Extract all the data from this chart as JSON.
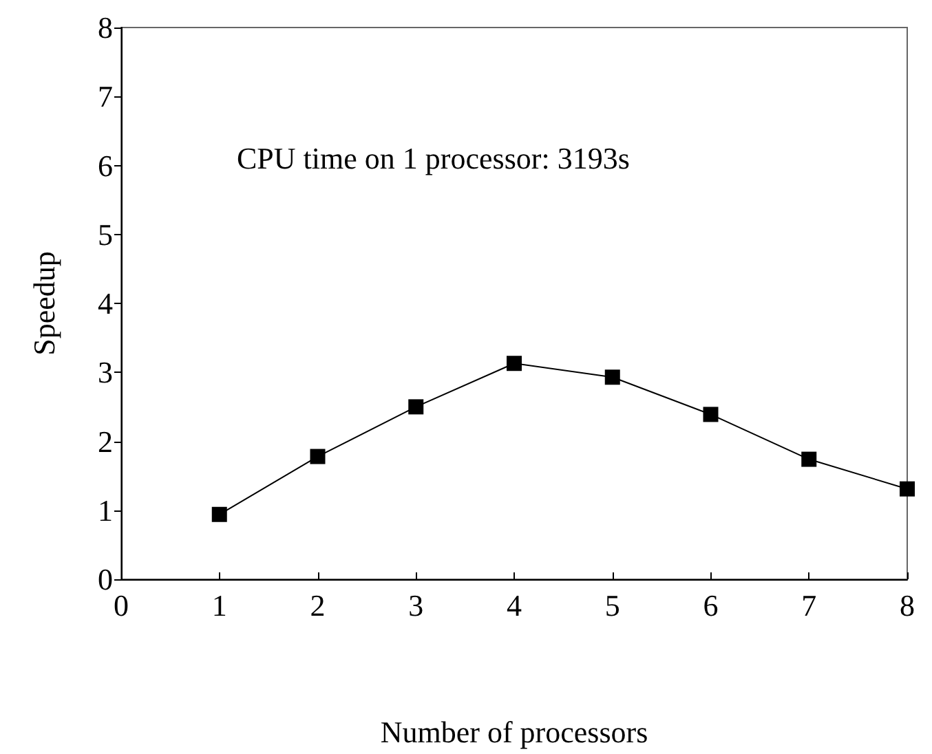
{
  "chart_data": {
    "type": "line",
    "xlabel": "Number of processors",
    "ylabel": "Speedup",
    "annotations": [
      "CPU time on 1 processor: 3193s"
    ],
    "x": [
      1,
      2,
      3,
      4,
      5,
      6,
      7,
      8
    ],
    "series": [
      {
        "color": "#000000",
        "values": [
          0.94,
          1.78,
          2.5,
          3.13,
          2.93,
          2.39,
          1.74,
          1.31
        ]
      }
    ],
    "xlim": [
      0,
      8
    ],
    "xticks": [
      0,
      1,
      2,
      3,
      4,
      5,
      6,
      7,
      8
    ],
    "ylim": [
      0,
      8
    ],
    "yticks": [
      0,
      1,
      2,
      3,
      4,
      5,
      6,
      7,
      8
    ],
    "grid": false,
    "marker": "square",
    "line_style": "solid"
  }
}
